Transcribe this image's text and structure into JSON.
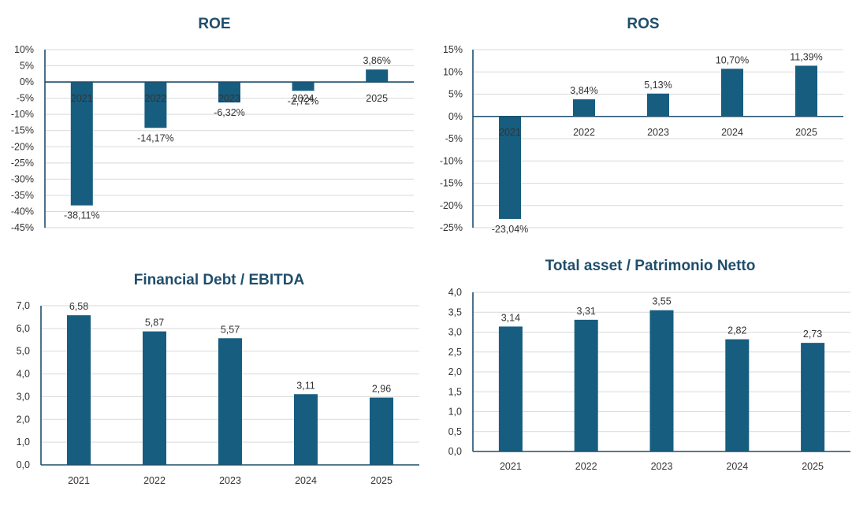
{
  "chart_data": [
    {
      "type": "bar",
      "title": "ROE",
      "categories": [
        "2021",
        "2022",
        "2023",
        "2024",
        "2025"
      ],
      "values": [
        -38.11,
        -14.17,
        -6.32,
        -2.72,
        3.86
      ],
      "data_labels": [
        "-38,11%",
        "-14,17%",
        "-6,32%",
        "-2,72%",
        "3,86%"
      ],
      "ylim": [
        -45,
        10
      ],
      "yticks": [
        10,
        5,
        0,
        -5,
        -10,
        -15,
        -20,
        -25,
        -30,
        -35,
        -40,
        -45
      ],
      "ytick_labels": [
        "10%",
        "5%",
        "0%",
        "-5%",
        "-10%",
        "-15%",
        "-20%",
        "-25%",
        "-30%",
        "-35%",
        "-40%",
        "-45%"
      ],
      "xlabel": "",
      "ylabel": "",
      "grid": true,
      "color": "#175d80"
    },
    {
      "type": "bar",
      "title": "ROS",
      "categories": [
        "2021",
        "2022",
        "2023",
        "2024",
        "2025"
      ],
      "values": [
        -23.04,
        3.84,
        5.13,
        10.7,
        11.39
      ],
      "data_labels": [
        "-23,04%",
        "3,84%",
        "5,13%",
        "10,70%",
        "11,39%"
      ],
      "ylim": [
        -25,
        15
      ],
      "yticks": [
        15,
        10,
        5,
        0,
        -5,
        -10,
        -15,
        -20,
        -25
      ],
      "ytick_labels": [
        "15%",
        "10%",
        "5%",
        "0%",
        "-5%",
        "-10%",
        "-15%",
        "-20%",
        "-25%"
      ],
      "xlabel": "",
      "ylabel": "",
      "grid": true,
      "color": "#175d80"
    },
    {
      "type": "bar",
      "title": "Financial Debt / EBITDA",
      "categories": [
        "2021",
        "2022",
        "2023",
        "2024",
        "2025"
      ],
      "values": [
        6.58,
        5.87,
        5.57,
        3.11,
        2.96
      ],
      "data_labels": [
        "6,58",
        "5,87",
        "5,57",
        "3,11",
        "2,96"
      ],
      "ylim": [
        0,
        7
      ],
      "yticks": [
        7,
        6,
        5,
        4,
        3,
        2,
        1,
        0
      ],
      "ytick_labels": [
        "7,0",
        "6,0",
        "5,0",
        "4,0",
        "3,0",
        "2,0",
        "1,0",
        "0,0"
      ],
      "xlabel": "",
      "ylabel": "",
      "grid": true,
      "color": "#175d80"
    },
    {
      "type": "bar",
      "title": "Total asset /  Patrimonio Netto",
      "categories": [
        "2021",
        "2022",
        "2023",
        "2024",
        "2025"
      ],
      "values": [
        3.14,
        3.31,
        3.55,
        2.82,
        2.73
      ],
      "data_labels": [
        "3,14",
        "3,31",
        "3,55",
        "2,82",
        "2,73"
      ],
      "ylim": [
        0,
        4
      ],
      "yticks": [
        4,
        3.5,
        3,
        2.5,
        2,
        1.5,
        1,
        0.5,
        0
      ],
      "ytick_labels": [
        "4,0",
        "3,5",
        "3,0",
        "2,5",
        "2,0",
        "1,5",
        "1,0",
        "0,5",
        "0,0"
      ],
      "xlabel": "",
      "ylabel": "",
      "grid": true,
      "color": "#175d80"
    }
  ]
}
